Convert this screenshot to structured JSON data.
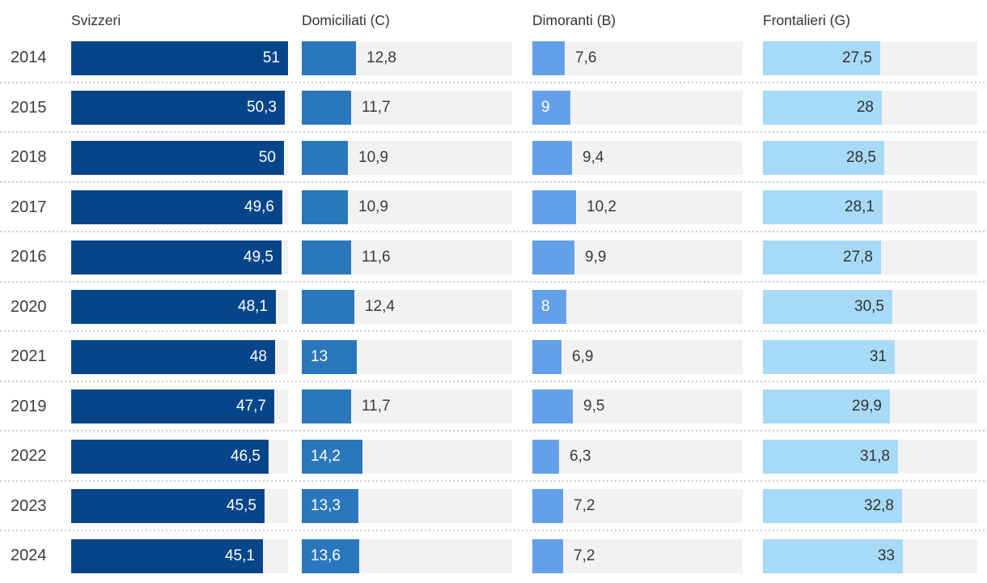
{
  "chart_data": {
    "type": "bar",
    "orientation": "horizontal",
    "grid": false,
    "legend_position": "column-headers",
    "value_format": "comma-decimal",
    "shared_scale_max": 51,
    "categories": [
      "2014",
      "2015",
      "2018",
      "2017",
      "2016",
      "2020",
      "2021",
      "2019",
      "2022",
      "2023",
      "2024"
    ],
    "series": [
      {
        "name": "Svizzeri",
        "color": "#07458a",
        "inside_text_color": "#ffffff",
        "inside_align": "right",
        "values": [
          51,
          50.3,
          50,
          49.6,
          49.5,
          48.1,
          48,
          47.7,
          46.5,
          45.5,
          45.1
        ],
        "labels": [
          "51",
          "50,3",
          "50",
          "49,6",
          "49,5",
          "48,1",
          "48",
          "47,7",
          "46,5",
          "45,5",
          "45,1"
        ],
        "label_inside": [
          true,
          true,
          true,
          true,
          true,
          true,
          true,
          true,
          true,
          true,
          true
        ]
      },
      {
        "name": "Domiciliati (C)",
        "color": "#2b77bd",
        "inside_text_color": "#ffffff",
        "inside_align": "left",
        "values": [
          12.8,
          11.7,
          10.9,
          10.9,
          11.6,
          12.4,
          13,
          11.7,
          14.2,
          13.3,
          13.6
        ],
        "labels": [
          "12,8",
          "11,7",
          "10,9",
          "10,9",
          "11,6",
          "12,4",
          "13",
          "11,7",
          "14,2",
          "13,3",
          "13,6"
        ],
        "label_inside": [
          false,
          false,
          false,
          false,
          false,
          false,
          true,
          false,
          true,
          true,
          true
        ]
      },
      {
        "name": "Dimoranti (B)",
        "color": "#64a0ea",
        "inside_text_color": "#ffffff",
        "inside_align": "left",
        "values": [
          7.6,
          9,
          9.4,
          10.2,
          9.9,
          8,
          6.9,
          9.5,
          6.3,
          7.2,
          7.2
        ],
        "labels": [
          "7,6",
          "9",
          "9,4",
          "10,2",
          "9,9",
          "8",
          "6,9",
          "9,5",
          "6,3",
          "7,2",
          "7,2"
        ],
        "label_inside": [
          false,
          true,
          false,
          false,
          false,
          true,
          false,
          false,
          false,
          false,
          false
        ]
      },
      {
        "name": "Frontalieri (G)",
        "color": "#a7daf6",
        "inside_text_color": "#333333",
        "inside_align": "right",
        "values": [
          27.5,
          28,
          28.5,
          28.1,
          27.8,
          30.5,
          31,
          29.9,
          31.8,
          32.8,
          33
        ],
        "labels": [
          "27,5",
          "28",
          "28,5",
          "28,1",
          "27,8",
          "30,5",
          "31",
          "29,9",
          "31,8",
          "32,8",
          "33"
        ],
        "label_inside": [
          true,
          true,
          true,
          true,
          true,
          true,
          true,
          true,
          true,
          true,
          true
        ]
      }
    ],
    "style": {
      "track_color": "#f2f2f1",
      "separator_color": "#c9c9c9",
      "header_text_color": "#333333",
      "year_text_color": "#3d3d3d",
      "outside_label_color": "#3a3a3a"
    }
  }
}
